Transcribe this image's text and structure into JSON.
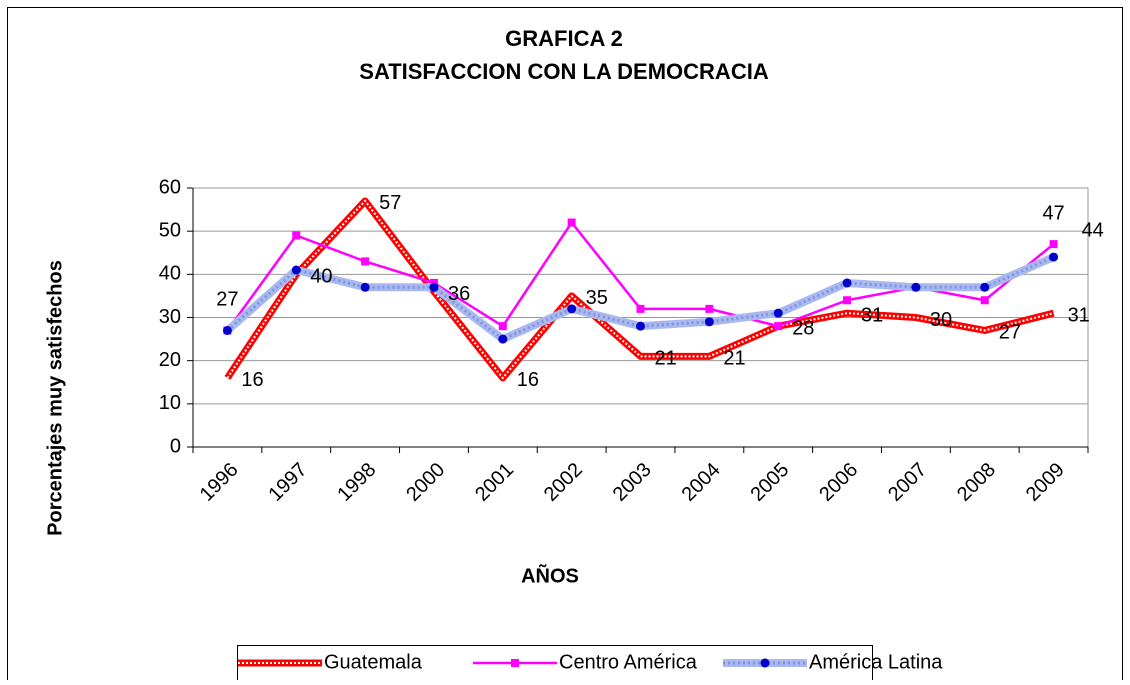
{
  "chart_data": {
    "type": "line",
    "title": "GRAFICA 2",
    "subtitle": "SATISFACCION CON LA DEMOCRACIA",
    "y_label": "Porcentajes muy satisfechos",
    "x_label": "AÑOS",
    "categories": [
      "1996",
      "1997",
      "1998",
      "2000",
      "2001",
      "2002",
      "2003",
      "2004",
      "2005",
      "2006",
      "2007",
      "2008",
      "2009"
    ],
    "series": [
      {
        "name": "Guatemala",
        "color": "#ff0000",
        "values": [
          16,
          40,
          57,
          36,
          16,
          35,
          21,
          21,
          28,
          31,
          30,
          27,
          31
        ],
        "value_labels": [
          "16",
          "40",
          "57",
          "36",
          "16",
          "35",
          "21",
          "21",
          "28",
          "31",
          "30",
          "27",
          "31"
        ]
      },
      {
        "name": "Centro América",
        "color": "#ff00ff",
        "values": [
          27,
          49,
          43,
          38,
          28,
          52,
          32,
          32,
          28,
          34,
          37,
          34,
          47
        ],
        "value_labels": [
          "27",
          null,
          null,
          null,
          null,
          null,
          null,
          null,
          null,
          null,
          null,
          null,
          "47"
        ]
      },
      {
        "name": "América Latina",
        "color": "#0000cc",
        "values": [
          27,
          41,
          37,
          37,
          25,
          32,
          28,
          29,
          31,
          38,
          37,
          37,
          44
        ],
        "value_labels": [
          null,
          null,
          null,
          null,
          null,
          null,
          null,
          null,
          null,
          null,
          null,
          null,
          "44"
        ]
      }
    ],
    "ylim": [
      0,
      60
    ],
    "yticks": [
      0,
      10,
      20,
      30,
      40,
      50,
      60
    ],
    "grid": true,
    "legend": "bottom"
  }
}
